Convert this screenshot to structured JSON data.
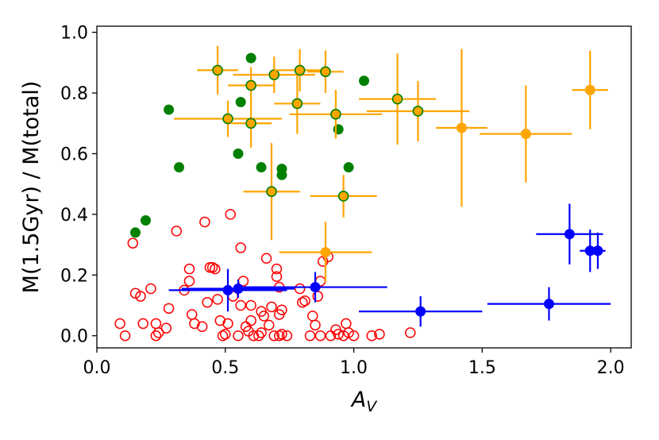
{
  "chart_data": {
    "type": "scatter",
    "title": "",
    "xlabel_main": "A",
    "xlabel_sub": "V",
    "ylabel": "M(1.5Gyr) / M(total)",
    "xlim": [
      0.0,
      2.08
    ],
    "ylim": [
      -0.04,
      1.02
    ],
    "x_ticks": [
      0.0,
      0.5,
      1.0,
      1.5,
      2.0
    ],
    "x_tick_labels": [
      "0.0",
      "0.5",
      "1.0",
      "1.5",
      "2.0"
    ],
    "y_ticks": [
      0.0,
      0.2,
      0.4,
      0.6,
      0.8,
      1.0
    ],
    "y_tick_labels": [
      "0.0",
      "0.2",
      "0.4",
      "0.6",
      "0.8",
      "1.0"
    ],
    "grid": false,
    "colors": {
      "red": "#ff0000",
      "green": "#008000",
      "orange": "#ffa500",
      "blue": "#0000ff",
      "axis": "#000000"
    },
    "series": [
      {
        "name": "red-open",
        "marker": "open-circle",
        "color": "#ff0000",
        "points": [
          [
            0.09,
            0.04
          ],
          [
            0.11,
            0.0
          ],
          [
            0.14,
            0.305
          ],
          [
            0.15,
            0.14
          ],
          [
            0.17,
            0.13
          ],
          [
            0.18,
            0.04
          ],
          [
            0.21,
            0.155
          ],
          [
            0.23,
            0.04
          ],
          [
            0.23,
            0.0
          ],
          [
            0.24,
            0.01
          ],
          [
            0.27,
            0.025
          ],
          [
            0.28,
            0.09
          ],
          [
            0.31,
            0.345
          ],
          [
            0.34,
            0.15
          ],
          [
            0.36,
            0.18
          ],
          [
            0.36,
            0.22
          ],
          [
            0.37,
            0.07
          ],
          [
            0.38,
            0.04
          ],
          [
            0.41,
            0.03
          ],
          [
            0.42,
            0.375
          ],
          [
            0.43,
            0.11
          ],
          [
            0.44,
            0.225
          ],
          [
            0.45,
            0.225
          ],
          [
            0.46,
            0.22
          ],
          [
            0.47,
            0.12
          ],
          [
            0.48,
            0.05
          ],
          [
            0.49,
            0.0
          ],
          [
            0.5,
            0.005
          ],
          [
            0.51,
            0.04
          ],
          [
            0.52,
            0.4
          ],
          [
            0.53,
            0.13
          ],
          [
            0.55,
            0.0
          ],
          [
            0.56,
            0.29
          ],
          [
            0.56,
            0.1
          ],
          [
            0.57,
            0.18
          ],
          [
            0.58,
            0.03
          ],
          [
            0.59,
            0.015
          ],
          [
            0.6,
            0.05
          ],
          [
            0.61,
            0.0
          ],
          [
            0.6,
            0.1
          ],
          [
            0.63,
            0.0
          ],
          [
            0.64,
            0.08
          ],
          [
            0.64,
            0.01
          ],
          [
            0.65,
            0.065
          ],
          [
            0.66,
            0.255
          ],
          [
            0.67,
            0.035
          ],
          [
            0.68,
            0.095
          ],
          [
            0.69,
            0.0
          ],
          [
            0.7,
            0.195
          ],
          [
            0.7,
            0.22
          ],
          [
            0.71,
            0.16
          ],
          [
            0.71,
            0.07
          ],
          [
            0.72,
            0.085
          ],
          [
            0.72,
            0.005
          ],
          [
            0.74,
            0.0
          ],
          [
            0.71,
            0.0
          ],
          [
            0.79,
            0.155
          ],
          [
            0.8,
            0.11
          ],
          [
            0.81,
            0.115
          ],
          [
            0.83,
            0.0
          ],
          [
            0.84,
            0.065
          ],
          [
            0.85,
            0.035
          ],
          [
            0.86,
            0.13
          ],
          [
            0.87,
            0.18
          ],
          [
            0.87,
            0.0
          ],
          [
            0.88,
            0.245
          ],
          [
            0.9,
            0.26
          ],
          [
            0.91,
            0.0
          ],
          [
            0.93,
            0.02
          ],
          [
            0.94,
            0.005
          ],
          [
            0.96,
            0.0
          ],
          [
            0.97,
            0.04
          ],
          [
            0.98,
            0.01
          ],
          [
            1.0,
            0.0
          ],
          [
            1.07,
            0.0
          ],
          [
            1.1,
            0.005
          ],
          [
            1.22,
            0.01
          ]
        ]
      },
      {
        "name": "green-filled",
        "marker": "filled-circle",
        "color": "#008000",
        "points": [
          [
            0.15,
            0.34
          ],
          [
            0.19,
            0.38
          ],
          [
            0.28,
            0.745
          ],
          [
            0.32,
            0.555
          ],
          [
            0.55,
            0.6
          ],
          [
            0.56,
            0.77
          ],
          [
            0.6,
            0.915
          ],
          [
            0.64,
            0.555
          ],
          [
            0.72,
            0.53
          ],
          [
            0.72,
            0.55
          ],
          [
            0.94,
            0.68
          ],
          [
            0.98,
            0.555
          ],
          [
            1.04,
            0.84
          ]
        ]
      },
      {
        "name": "orange-errorbars",
        "marker": "filled-circle-errorbar",
        "color": "#ffa500",
        "edge": "#008000",
        "points": [
          {
            "x": 0.47,
            "y": 0.875,
            "xerr": 0.08,
            "yerr": 0.08,
            "edge": true
          },
          {
            "x": 0.51,
            "y": 0.715,
            "xerr": 0.21,
            "yerr": 0.06,
            "edge": true
          },
          {
            "x": 0.6,
            "y": 0.825,
            "xerr": 0.09,
            "yerr": 0.06,
            "edge": true
          },
          {
            "x": 0.6,
            "y": 0.7,
            "xerr": 0.08,
            "yerr": 0.08,
            "edge": true
          },
          {
            "x": 0.68,
            "y": 0.475,
            "xerr": 0.11,
            "yerr": 0.16,
            "edge": true
          },
          {
            "x": 0.69,
            "y": 0.86,
            "xerr": 0.16,
            "yerr": 0.06,
            "edge": true
          },
          {
            "x": 0.78,
            "y": 0.765,
            "xerr": 0.09,
            "yerr": 0.1,
            "edge": true
          },
          {
            "x": 0.79,
            "y": 0.875,
            "xerr": 0.1,
            "yerr": 0.07,
            "edge": true
          },
          {
            "x": 0.89,
            "y": 0.87,
            "xerr": 0.07,
            "yerr": 0.07,
            "edge": true
          },
          {
            "x": 0.93,
            "y": 0.73,
            "xerr": 0.18,
            "yerr": 0.08,
            "edge": true
          },
          {
            "x": 0.96,
            "y": 0.46,
            "xerr": 0.13,
            "yerr": 0.07,
            "edge": true
          },
          {
            "x": 1.17,
            "y": 0.78,
            "xerr": 0.15,
            "yerr": 0.15,
            "edge": true
          },
          {
            "x": 1.25,
            "y": 0.74,
            "xerr": 0.2,
            "yerr": 0.1,
            "edge": true
          },
          {
            "x": 0.89,
            "y": 0.275,
            "xerr": 0.18,
            "yerr": 0.1,
            "edge": false
          },
          {
            "x": 1.42,
            "y": 0.685,
            "xerr": 0.1,
            "yerr": 0.26,
            "edge": false
          },
          {
            "x": 1.67,
            "y": 0.665,
            "xerr": 0.18,
            "yerr": 0.16,
            "edge": false
          },
          {
            "x": 1.92,
            "y": 0.81,
            "xerr": 0.07,
            "yerr": 0.13,
            "edge": false
          }
        ]
      },
      {
        "name": "blue-errorbars",
        "marker": "filled-circle-errorbar",
        "color": "#0000ff",
        "points": [
          {
            "x": 0.51,
            "y": 0.15,
            "xerr": 0.23,
            "yerr": 0.07
          },
          {
            "x": 0.55,
            "y": 0.155,
            "xerr": 0.22,
            "yerr": 0.03
          },
          {
            "x": 0.85,
            "y": 0.16,
            "xerr": 0.28,
            "yerr": 0.05
          },
          {
            "x": 1.26,
            "y": 0.08,
            "xerr": 0.24,
            "yerr": 0.05
          },
          {
            "x": 1.76,
            "y": 0.105,
            "xerr": 0.24,
            "yerr": 0.055
          },
          {
            "x": 1.84,
            "y": 0.335,
            "xerr": 0.13,
            "yerr": 0.1
          },
          {
            "x": 1.92,
            "y": 0.28,
            "xerr": 0.04,
            "yerr": 0.07
          },
          {
            "x": 1.95,
            "y": 0.28,
            "xerr": 0.03,
            "yerr": 0.06
          }
        ]
      }
    ]
  }
}
